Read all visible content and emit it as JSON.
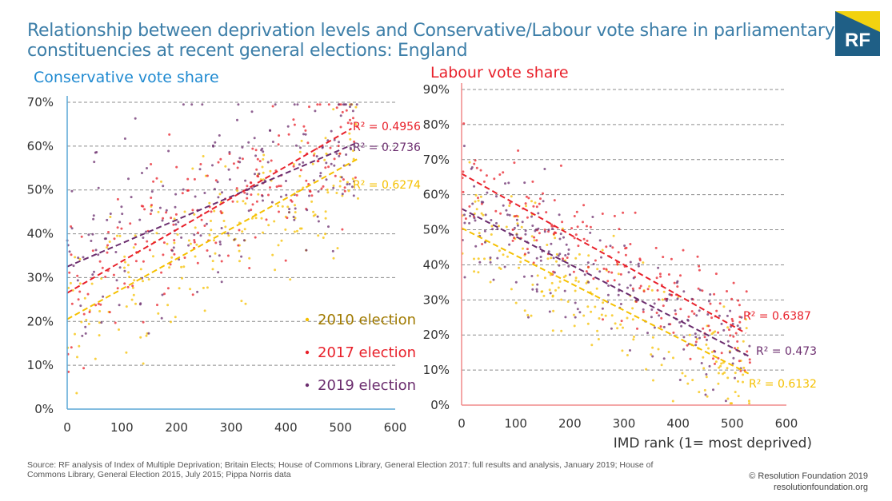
{
  "header": {
    "title_line1": "Relationship between deprivation levels and Conservative/Labour vote share in parliamentary",
    "title_line2": "constituencies at recent general elections: England",
    "logo_text": "RF"
  },
  "colors": {
    "title": "#3c7ea8",
    "e2010": "#f5c000",
    "e2017": "#e8202a",
    "e2019": "#6b2d6e",
    "axis_left": "#5aa7d6",
    "axis_right": "#f08a8a",
    "grid": "#8c8c8c"
  },
  "chart_data": [
    {
      "type": "scatter",
      "title": "Conservative vote share",
      "xlabel": "",
      "ylabel": "",
      "xlim": [
        0,
        600
      ],
      "ylim": [
        0,
        0.7
      ],
      "x_ticks": [
        "0",
        "100",
        "200",
        "300",
        "400",
        "500",
        "600"
      ],
      "y_ticks": [
        "0%",
        "10%",
        "20%",
        "30%",
        "40%",
        "50%",
        "60%",
        "70%"
      ],
      "grid": "horizontal dashed",
      "legend_position": "bottom-right",
      "series": [
        {
          "name": "2010 election",
          "key": "e2010",
          "trend_from": [
            0,
            0.205
          ],
          "trend_to": [
            530,
            0.57
          ],
          "r2": "R² = 0.6274"
        },
        {
          "name": "2017 election",
          "key": "e2017",
          "trend_from": [
            0,
            0.265
          ],
          "trend_to": [
            520,
            0.64
          ],
          "r2": "R² = 0.4956"
        },
        {
          "name": "2019 election",
          "key": "e2019",
          "trend_from": [
            0,
            0.325
          ],
          "trend_to": [
            525,
            0.605
          ],
          "r2": "R² = 0.2736"
        }
      ]
    },
    {
      "type": "scatter",
      "title": "Labour vote share",
      "xlabel": "IMD rank (1= most deprived)",
      "ylabel": "",
      "xlim": [
        0,
        600
      ],
      "ylim": [
        0,
        0.9
      ],
      "x_ticks": [
        "0",
        "100",
        "200",
        "300",
        "400",
        "500",
        "600"
      ],
      "y_ticks": [
        "0%",
        "10%",
        "20%",
        "30%",
        "40%",
        "50%",
        "60%",
        "70%",
        "80%",
        "90%"
      ],
      "grid": "horizontal dashed",
      "series": [
        {
          "name": "2010 election",
          "key": "e2010",
          "trend_from": [
            0,
            0.505
          ],
          "trend_to": [
            530,
            0.09
          ],
          "r2": "R² = 0.6132"
        },
        {
          "name": "2017 election",
          "key": "e2017",
          "trend_from": [
            0,
            0.66
          ],
          "trend_to": [
            525,
            0.205
          ],
          "r2": "R² = 0.6387"
        },
        {
          "name": "2019 election",
          "key": "e2019",
          "trend_from": [
            0,
            0.56
          ],
          "trend_to": [
            530,
            0.14
          ],
          "r2": "R² = 0.473"
        }
      ]
    }
  ],
  "footer": {
    "source_line1": "Source: RF analysis of Index of Multiple Deprivation; Britain Elects; House of Commons Library, General Election 2017: full results and analysis, January 2019; House of",
    "source_line2": "Commons Library, General Election 2015, July 2015; Pippa Norris data",
    "credit_line1": "© Resolution Foundation 2019",
    "credit_line2": "resolutionfoundation.org"
  }
}
